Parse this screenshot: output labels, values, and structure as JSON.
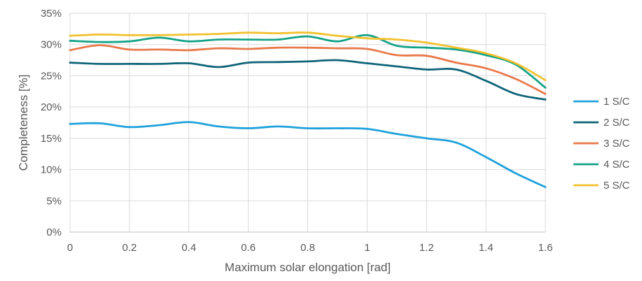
{
  "chart_data": {
    "type": "line",
    "title": "",
    "xlabel": "Maximum solar elongation [rad]",
    "ylabel": "Completeness [%]",
    "xlim": [
      0,
      1.6
    ],
    "ylim": [
      0,
      35
    ],
    "grid": true,
    "legend_position": "right",
    "x_ticks": [
      "0",
      "0.2",
      "0.4",
      "0.6",
      "0.8",
      "1",
      "1.2",
      "1.4",
      "1.6"
    ],
    "x_tick_values": [
      0,
      0.2,
      0.4,
      0.6,
      0.8,
      1.0,
      1.2,
      1.4,
      1.6
    ],
    "y_ticks": [
      "0%",
      "5%",
      "10%",
      "15%",
      "20%",
      "25%",
      "30%",
      "35%"
    ],
    "y_tick_values": [
      0,
      5,
      10,
      15,
      20,
      25,
      30,
      35
    ],
    "x": [
      0,
      0.1,
      0.2,
      0.3,
      0.4,
      0.5,
      0.6,
      0.7,
      0.8,
      0.9,
      1.0,
      1.1,
      1.2,
      1.3,
      1.4,
      1.5,
      1.6
    ],
    "series": [
      {
        "name": "1 S/C",
        "color": "#1FA2DB",
        "values": [
          17.3,
          17.4,
          16.8,
          17.1,
          17.6,
          16.9,
          16.6,
          16.9,
          16.6,
          16.6,
          16.5,
          15.7,
          15.0,
          14.3,
          12.0,
          9.4,
          7.2
        ]
      },
      {
        "name": "2 S/C",
        "color": "#0F6478",
        "values": [
          27.1,
          26.9,
          26.9,
          26.9,
          27.0,
          26.4,
          27.1,
          27.2,
          27.3,
          27.5,
          27.0,
          26.5,
          26.0,
          26.0,
          24.2,
          22.1,
          21.2
        ]
      },
      {
        "name": "3 S/C",
        "color": "#E8794A",
        "values": [
          29.1,
          29.9,
          29.2,
          29.2,
          29.1,
          29.4,
          29.3,
          29.5,
          29.5,
          29.4,
          29.3,
          28.3,
          28.2,
          27.1,
          26.2,
          24.5,
          22.1
        ]
      },
      {
        "name": "4 S/C",
        "color": "#14A388",
        "values": [
          30.6,
          30.4,
          30.5,
          31.1,
          30.5,
          30.8,
          30.8,
          30.8,
          31.3,
          30.5,
          31.5,
          29.8,
          29.5,
          29.2,
          28.3,
          26.8,
          23.1
        ]
      },
      {
        "name": "5 S/C",
        "color": "#F2C12E",
        "values": [
          31.4,
          31.6,
          31.5,
          31.5,
          31.6,
          31.7,
          31.9,
          31.8,
          31.9,
          31.4,
          31.0,
          30.8,
          30.3,
          29.5,
          28.6,
          27.0,
          24.3
        ]
      }
    ]
  }
}
